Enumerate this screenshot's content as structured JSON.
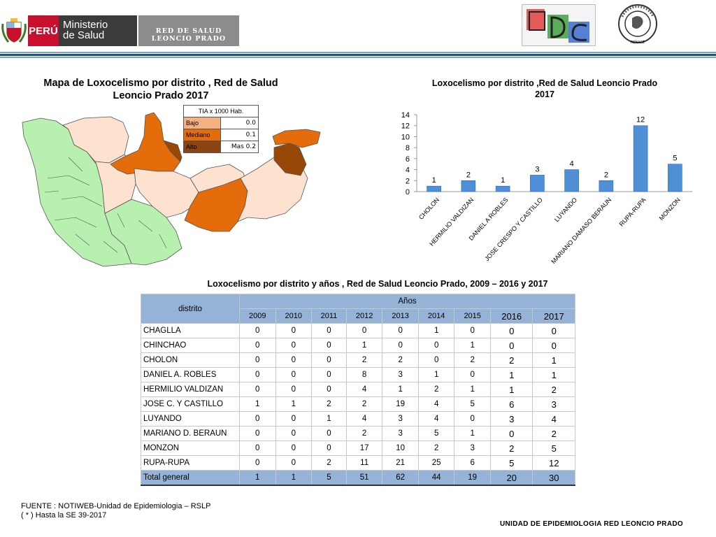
{
  "header": {
    "peru_label": "PERÚ",
    "ministry_line1": "Ministerio",
    "ministry_line2": "de Salud",
    "network_line1": "RED DE SALUD",
    "network_line2": "LEONCIO PRADO",
    "renace_label": "RENACE"
  },
  "map": {
    "title": "Mapa de Loxocelismo por distrito , Red de Salud Leoncio Prado 2017",
    "legend": {
      "header": "TIA x  1000 Hab.",
      "items": [
        {
          "label": "Bajo",
          "value": "0.0",
          "color": "#f4b183"
        },
        {
          "label": "Mediano",
          "value": "0.1",
          "color": "#e46c0a"
        },
        {
          "label": "Alto",
          "value": "Mas 0.2",
          "color": "#8b4513"
        }
      ]
    },
    "colors": {
      "none": "#b8f0b0",
      "low": "#fde2d0",
      "medium": "#e46c0a",
      "high": "#974806"
    }
  },
  "chart_data": {
    "type": "bar",
    "title": "Loxocelismo por  distrito ,Red de Salud Leoncio Prado 2017",
    "categories": [
      "CHOLON",
      "HERMILIO VALDIZAN",
      "DANIEL A ROBLES",
      "JOSE CRESPO Y CASTILLO",
      "LUYANDO",
      "MARIANO DAMASO BERAUN",
      "RUPA-RUPA",
      "MONZON"
    ],
    "values": [
      1,
      2,
      1,
      3,
      4,
      2,
      12,
      5
    ],
    "ylim": [
      0,
      14
    ],
    "yticks": [
      "0",
      "2",
      "4",
      "6",
      "8",
      "10",
      "12",
      "14"
    ],
    "grid": false,
    "bar_color": "#4f8fd6"
  },
  "table": {
    "title": "Loxocelismo  por distrito  y años , Red de Salud Leoncio Prado, 2009 – 2016 y  2017",
    "col_district": "distrito",
    "col_years": "Años",
    "years": [
      "2009",
      "2010",
      "2011",
      "2012",
      "2013",
      "2014",
      "2015",
      "2016",
      "2017"
    ],
    "rows": [
      {
        "name": "CHAGLLA",
        "values": [
          "0",
          "0",
          "0",
          "0",
          "0",
          "1",
          "0",
          "0",
          "0"
        ]
      },
      {
        "name": "CHINCHAO",
        "values": [
          "0",
          "0",
          "0",
          "1",
          "0",
          "0",
          "1",
          "0",
          "0"
        ]
      },
      {
        "name": "CHOLON",
        "values": [
          "0",
          "0",
          "0",
          "2",
          "2",
          "0",
          "2",
          "2",
          "1"
        ]
      },
      {
        "name": "DANIEL A. ROBLES",
        "values": [
          "0",
          "0",
          "0",
          "8",
          "3",
          "1",
          "0",
          "1",
          "1"
        ]
      },
      {
        "name": "HERMILIO VALDIZAN",
        "values": [
          "0",
          "0",
          "0",
          "4",
          "1",
          "2",
          "1",
          "1",
          "2"
        ]
      },
      {
        "name": "JOSE C. Y CASTILLO",
        "values": [
          "1",
          "1",
          "2",
          "2",
          "19",
          "4",
          "5",
          "6",
          "3"
        ]
      },
      {
        "name": "LUYANDO",
        "values": [
          "0",
          "0",
          "1",
          "4",
          "3",
          "4",
          "0",
          "3",
          "4"
        ]
      },
      {
        "name": "MARIANO D. BERAUN",
        "values": [
          "0",
          "0",
          "0",
          "2",
          "3",
          "5",
          "1",
          "0",
          "2"
        ]
      },
      {
        "name": "MONZON",
        "values": [
          "0",
          "0",
          "0",
          "17",
          "10",
          "2",
          "3",
          "2",
          "5"
        ]
      },
      {
        "name": "RUPA-RUPA",
        "values": [
          "0",
          "0",
          "2",
          "11",
          "21",
          "25",
          "6",
          "5",
          "12"
        ]
      }
    ],
    "total": {
      "name": "Total general",
      "values": [
        "1",
        "1",
        "5",
        "51",
        "62",
        "44",
        "19",
        "20",
        "30"
      ]
    }
  },
  "footer": {
    "source_line1": "FUENTE : NOTIWEB-Unidad de Epidemiologia – RSLP",
    "source_line2": "( * ) Hasta la SE  39-2017",
    "unit": "UNIDAD  DE EPIDEMIOLOGIA RED LEONCIO PRADO"
  }
}
